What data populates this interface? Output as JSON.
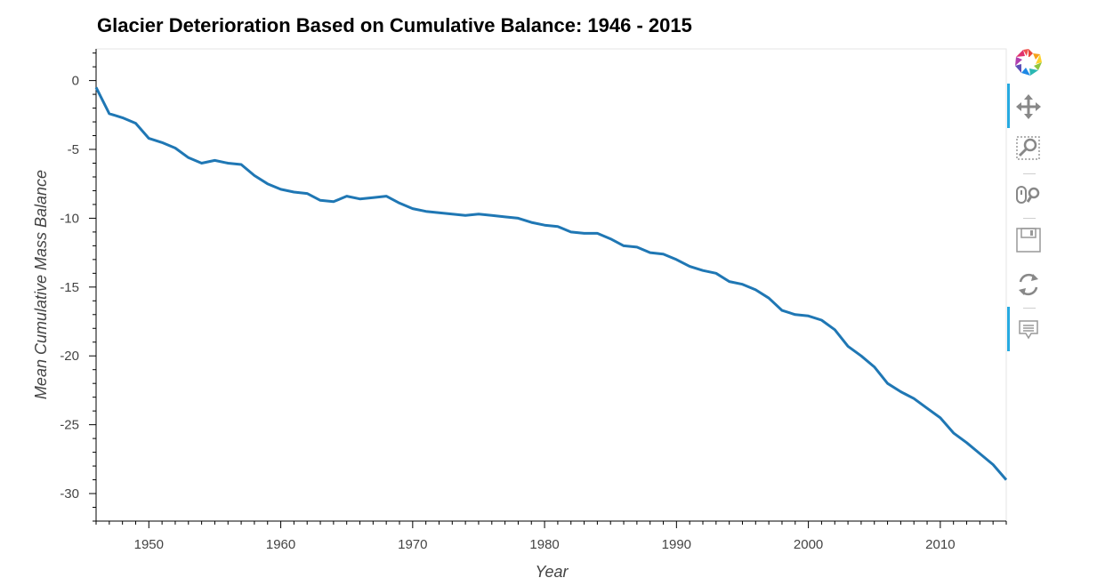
{
  "chart_data": {
    "type": "line",
    "title": "Glacier Deterioration Based on Cumulative Balance: 1946 - 2015",
    "xlabel": "Year",
    "ylabel": "Mean Cumulative Mass Balance",
    "xlim": [
      1946,
      2015
    ],
    "ylim": [
      -32,
      2.3
    ],
    "x_ticks": [
      1950,
      1960,
      1970,
      1980,
      1990,
      2000,
      2010
    ],
    "y_ticks": [
      0,
      -5,
      -10,
      -15,
      -20,
      -25,
      -30
    ],
    "x_tick_labels": [
      "1950",
      "1960",
      "1970",
      "1980",
      "1990",
      "2000",
      "2010"
    ],
    "y_tick_labels": [
      "0",
      "-5",
      "-10",
      "-15",
      "-20",
      "-25",
      "-30"
    ],
    "grid": false,
    "line_color": "#1f77b4",
    "series": [
      {
        "x": [
          1946,
          1947,
          1948,
          1949,
          1950,
          1951,
          1952,
          1953,
          1954,
          1955,
          1956,
          1957,
          1958,
          1959,
          1960,
          1961,
          1962,
          1963,
          1964,
          1965,
          1966,
          1967,
          1968,
          1969,
          1970,
          1971,
          1972,
          1973,
          1974,
          1975,
          1976,
          1977,
          1978,
          1979,
          1980,
          1981,
          1982,
          1983,
          1984,
          1985,
          1986,
          1987,
          1988,
          1989,
          1990,
          1991,
          1992,
          1993,
          1994,
          1995,
          1996,
          1997,
          1998,
          1999,
          2000,
          2001,
          2002,
          2003,
          2004,
          2005,
          2006,
          2007,
          2008,
          2009,
          2010,
          2011,
          2012,
          2013,
          2014,
          2015
        ],
        "values": [
          -0.5,
          -2.4,
          -2.7,
          -3.1,
          -4.2,
          -4.5,
          -4.9,
          -5.6,
          -6.0,
          -5.8,
          -6.0,
          -6.1,
          -6.9,
          -7.5,
          -7.9,
          -8.1,
          -8.2,
          -8.7,
          -8.8,
          -8.4,
          -8.6,
          -8.5,
          -8.4,
          -8.9,
          -9.3,
          -9.5,
          -9.6,
          -9.7,
          -9.8,
          -9.7,
          -9.8,
          -9.9,
          -10.0,
          -10.3,
          -10.5,
          -10.6,
          -11.0,
          -11.1,
          -11.1,
          -11.5,
          -12.0,
          -12.1,
          -12.5,
          -12.6,
          -13.0,
          -13.5,
          -13.8,
          -14.0,
          -14.6,
          -14.8,
          -15.2,
          -15.8,
          -16.7,
          -17.0,
          -17.1,
          -17.4,
          -18.1,
          -19.3,
          -20.0,
          -20.8,
          -22.0,
          -22.6,
          -23.1,
          -23.8,
          -24.5,
          -25.6,
          -26.3,
          -27.1,
          -27.9,
          -29.0
        ]
      }
    ]
  },
  "toolbar": {
    "tools": [
      "bokeh-logo-icon",
      "pan-icon",
      "box-zoom-icon",
      "wheel-zoom-icon",
      "save-icon",
      "reset-icon",
      "hover-icon"
    ]
  }
}
